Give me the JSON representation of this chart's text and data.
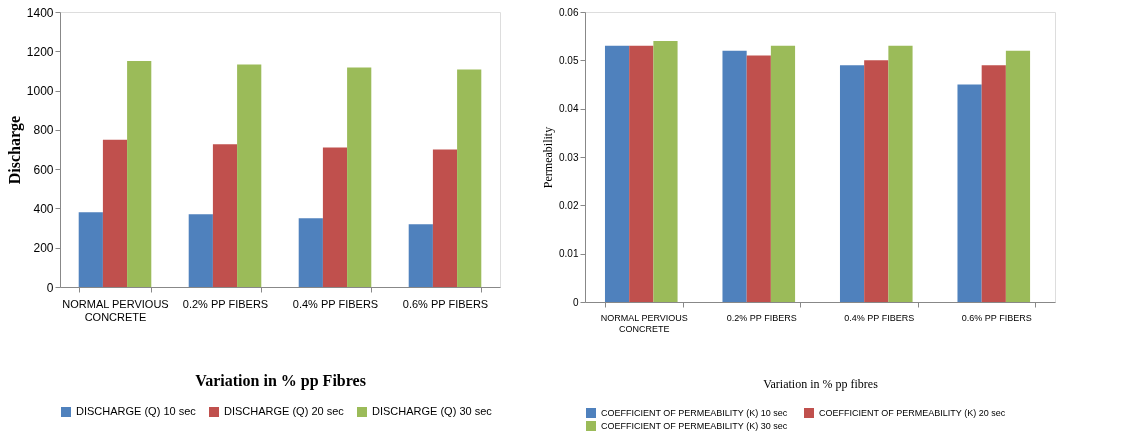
{
  "chart_data": [
    {
      "type": "bar",
      "xlabel": "Variation in % pp Fibres",
      "ylabel": "Discharge",
      "categories": [
        "NORMAL PERVIOUS CONCRETE",
        "0.2% PP FIBERS",
        "0.4% PP FIBERS",
        "0.6% PP FIBERS"
      ],
      "ylim": [
        0,
        1400
      ],
      "yticks": [
        0,
        200,
        400,
        600,
        800,
        1000,
        1200,
        1400
      ],
      "grid": false,
      "legend": "bottom",
      "series": [
        {
          "name": "DISCHARGE (Q) 10 sec",
          "color": "#4f81bd",
          "values": [
            380,
            370,
            350,
            320
          ]
        },
        {
          "name": "DISCHARGE (Q) 20 sec",
          "color": "#c0504d",
          "values": [
            750,
            727,
            710,
            700
          ]
        },
        {
          "name": "DISCHARGE (Q) 30 sec",
          "color": "#9bbb59",
          "values": [
            1150,
            1133,
            1117,
            1107
          ]
        }
      ]
    },
    {
      "type": "bar",
      "xlabel": "Variation in % pp fibres",
      "ylabel": "Permeability",
      "categories": [
        "NORMAL PERVIOUS CONCRETE",
        "0.2% PP FIBERS",
        "0.4% PP FIBERS",
        "0.6% PP FIBERS"
      ],
      "ylim": [
        0,
        0.06
      ],
      "yticks": [
        0,
        0.01,
        0.02,
        0.03,
        0.04,
        0.05,
        0.06
      ],
      "grid": false,
      "legend": "bottom",
      "series": [
        {
          "name": "COEFFICIENT OF PERMEABILITY  (K) 10 sec",
          "color": "#4f81bd",
          "values": [
            0.053,
            0.052,
            0.049,
            0.045
          ]
        },
        {
          "name": "COEFFICIENT OF PERMEABILITY  (K) 20 sec",
          "color": "#c0504d",
          "values": [
            0.053,
            0.051,
            0.05,
            0.049
          ]
        },
        {
          "name": "COEFFICIENT OF PERMEABILITY  (K) 30 sec",
          "color": "#9bbb59",
          "values": [
            0.054,
            0.053,
            0.053,
            0.052
          ]
        }
      ]
    }
  ]
}
